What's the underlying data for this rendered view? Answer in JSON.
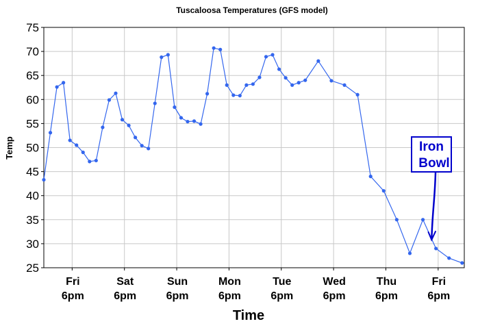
{
  "chart_data": {
    "type": "line",
    "title": "Tuscaloosa Temperatures (GFS model)",
    "xlabel": "Time",
    "ylabel": "Temp",
    "ylim": [
      25,
      75
    ],
    "yticks": [
      25,
      30,
      35,
      40,
      45,
      50,
      55,
      60,
      65,
      70,
      75
    ],
    "xlim_hours": [
      0,
      193
    ],
    "grid": true,
    "xticks": [
      {
        "day": "Fri",
        "time": "6pm",
        "hour": 13
      },
      {
        "day": "Sat",
        "time": "6pm",
        "hour": 37
      },
      {
        "day": "Sun",
        "time": "6pm",
        "hour": 61
      },
      {
        "day": "Mon",
        "time": "6pm",
        "hour": 85
      },
      {
        "day": "Tue",
        "time": "6pm",
        "hour": 109
      },
      {
        "day": "Wed",
        "time": "6pm",
        "hour": 133
      },
      {
        "day": "Thu",
        "time": "6pm",
        "hour": 157
      },
      {
        "day": "Fri",
        "time": "6pm",
        "hour": 181
      }
    ],
    "series": [
      {
        "color": "#3366ee",
        "x": [
          0,
          3,
          6,
          9,
          12,
          15,
          18,
          21,
          24,
          27,
          30,
          33,
          36,
          39,
          42,
          45,
          48,
          51,
          54,
          57,
          60,
          63,
          66,
          69,
          72,
          75,
          78,
          81,
          84,
          87,
          90,
          93,
          96,
          99,
          102,
          105,
          108,
          111,
          114,
          117,
          120,
          126,
          132,
          138,
          144,
          150,
          156,
          162,
          168,
          174,
          180,
          186,
          192
        ],
        "y": [
          43.3,
          53.1,
          62.6,
          63.5,
          51.5,
          50.5,
          49,
          47.1,
          47.3,
          54.2,
          59.9,
          61.3,
          55.8,
          54.6,
          52.1,
          50.4,
          49.8,
          59.2,
          68.8,
          69.3,
          58.4,
          56.2,
          55.4,
          55.5,
          54.9,
          61.2,
          70.7,
          70.4,
          63,
          60.9,
          60.8,
          63,
          63.2,
          64.6,
          68.9,
          69.3,
          66.3,
          64.5,
          63,
          63.5,
          64,
          68,
          63.9,
          63,
          61,
          44,
          41,
          35,
          28,
          35,
          29,
          27,
          26
        ]
      }
    ],
    "annotations": [
      {
        "line1": "Iron",
        "line2": "Bowl",
        "box_color": "#0000cc",
        "arrow_target_hour": 178,
        "arrow_target_value": 30.8
      }
    ]
  }
}
